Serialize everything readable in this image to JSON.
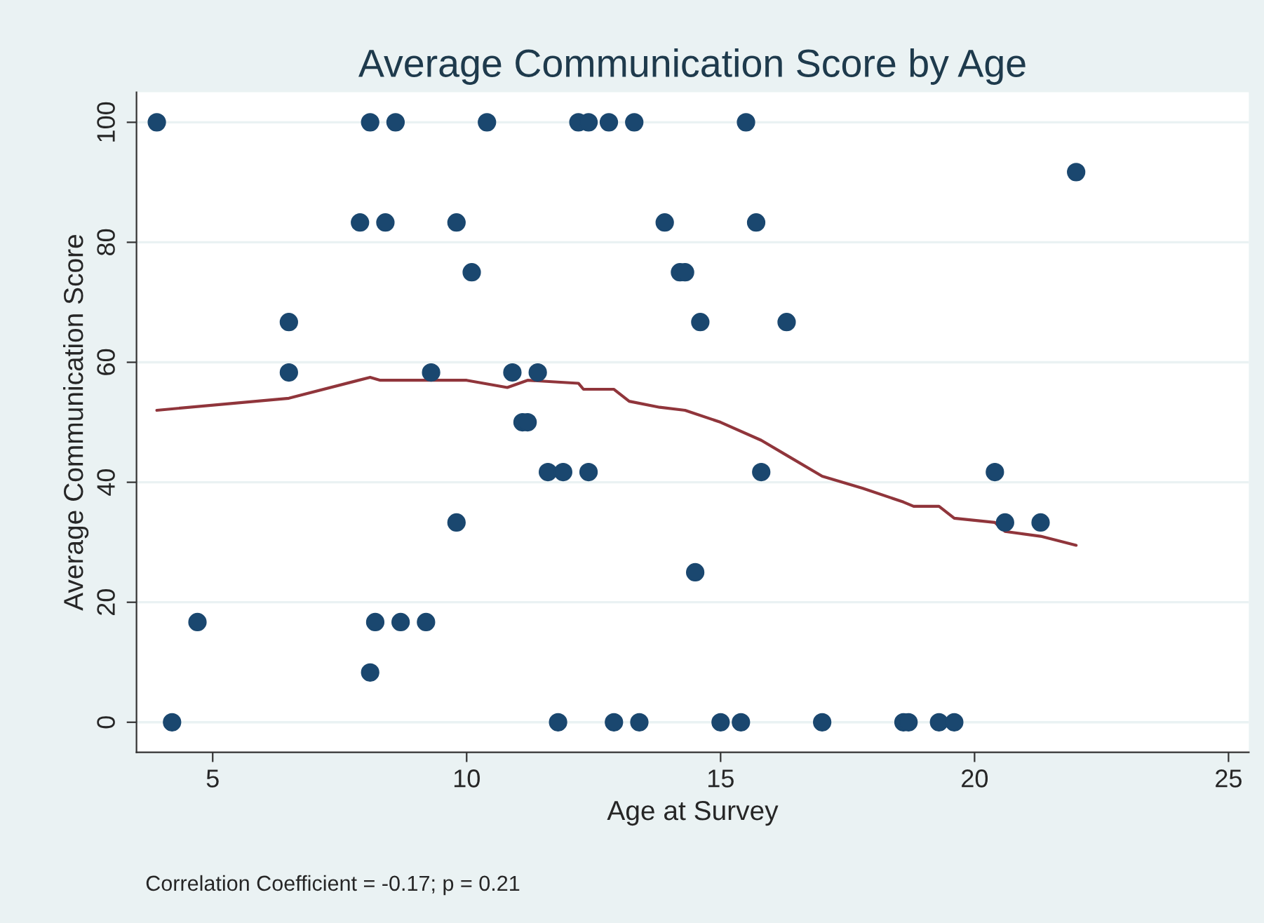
{
  "chart_data": {
    "type": "scatter",
    "title": "Average Communication Score by Age",
    "xlabel": "Age at Survey",
    "ylabel": "Average Communication Score",
    "annotations": [
      "Correlation Coefficient = -0.17; p = 0.21"
    ],
    "xlim": [
      3.5,
      25.4
    ],
    "xticks": [
      5,
      10,
      15,
      20,
      25
    ],
    "ylim": [
      -5,
      105
    ],
    "yticks": [
      0,
      20,
      40,
      60,
      80,
      100
    ],
    "grid": "y",
    "marker": "circle",
    "series": [
      {
        "color": "#1a476f",
        "x": [
          3.9,
          4.2,
          4.7,
          6.5,
          6.5,
          7.9,
          8.1,
          8.1,
          8.2,
          8.4,
          8.6,
          8.7,
          9.2,
          9.3,
          9.8,
          9.8,
          10.1,
          10.4,
          10.9,
          11.1,
          11.2,
          11.4,
          11.6,
          11.8,
          11.9,
          12.2,
          12.4,
          12.4,
          12.8,
          12.9,
          13.3,
          13.4,
          13.9,
          14.2,
          14.3,
          14.5,
          14.6,
          15.0,
          15.4,
          15.5,
          15.7,
          15.8,
          16.3,
          17.0,
          18.6,
          18.7,
          19.3,
          19.6,
          20.4,
          20.6,
          21.3,
          22.0
        ],
        "values": [
          100,
          0,
          16.7,
          66.7,
          58.3,
          83.3,
          100,
          8.3,
          16.7,
          83.3,
          100,
          16.7,
          16.7,
          58.3,
          83.3,
          33.3,
          75,
          100,
          58.3,
          50,
          50,
          58.3,
          41.7,
          0,
          41.7,
          100,
          100,
          41.7,
          100,
          0,
          100,
          0,
          83.3,
          75,
          75,
          25,
          66.7,
          0,
          0,
          100,
          83.3,
          41.7,
          66.7,
          0,
          0,
          0,
          0,
          0,
          41.7,
          33.3,
          33.3,
          91.7
        ]
      },
      {
        "type": "line",
        "color": "#90353b",
        "marker": "none",
        "x": [
          3.9,
          6.5,
          8.1,
          8.3,
          9,
          10,
          10.8,
          11.2,
          12.2,
          12.3,
          12.9,
          13.2,
          13.8,
          14.3,
          15.0,
          15.8,
          16.3,
          17.0,
          17.8,
          18.6,
          18.8,
          19.3,
          19.6,
          20.4,
          20.6,
          21.3,
          22.0
        ],
        "values": [
          52,
          54,
          57.5,
          57,
          57,
          57,
          55.8,
          57,
          56.5,
          55.5,
          55.5,
          53.5,
          52.5,
          52,
          50,
          47,
          44.5,
          41,
          39,
          36.7,
          36,
          36,
          34,
          33.3,
          31.8,
          31,
          29.5
        ]
      }
    ]
  }
}
